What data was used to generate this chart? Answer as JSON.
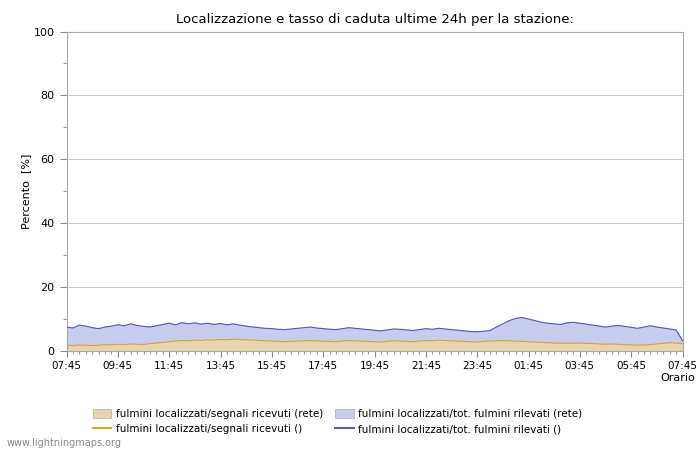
{
  "title": "Localizzazione e tasso di caduta ultime 24h per la stazione:",
  "xlabel": "Orario",
  "ylabel": "Percento  [%]",
  "ylim": [
    0,
    100
  ],
  "yticks": [
    0,
    20,
    40,
    60,
    80,
    100
  ],
  "yminor_ticks": [
    10,
    30,
    50,
    70,
    90
  ],
  "xtick_labels": [
    "07:45",
    "09:45",
    "11:45",
    "13:45",
    "15:45",
    "17:45",
    "19:45",
    "21:45",
    "23:45",
    "01:45",
    "03:45",
    "05:45",
    "07:45"
  ],
  "background_color": "#ffffff",
  "plot_bg_color": "#ffffff",
  "grid_color": "#cccccc",
  "watermark": "www.lightningmaps.org",
  "fill_color_1": "#e8d5b0",
  "fill_color_2": "#c8ccee",
  "line_color_1": "#d4a832",
  "line_color_2": "#5555bb",
  "legend_labels": [
    "fulmini localizzati/segnali ricevuti (rete)",
    "fulmini localizzati/segnali ricevuti ()",
    "fulmini localizzati/tot. fulmini rilevati (rete)",
    "fulmini localizzati/tot. fulmini rilevati ()"
  ],
  "n_points": 97,
  "fill1_values": [
    1.8,
    1.7,
    1.9,
    1.8,
    1.7,
    1.8,
    2.0,
    1.9,
    2.1,
    2.0,
    2.2,
    2.1,
    2.0,
    2.3,
    2.5,
    2.7,
    2.9,
    3.1,
    3.3,
    3.2,
    3.4,
    3.3,
    3.5,
    3.4,
    3.6,
    3.5,
    3.7,
    3.6,
    3.5,
    3.4,
    3.3,
    3.2,
    3.1,
    3.0,
    2.9,
    3.0,
    3.1,
    3.2,
    3.3,
    3.2,
    3.1,
    3.0,
    2.9,
    3.1,
    3.3,
    3.2,
    3.1,
    3.0,
    2.9,
    2.8,
    3.0,
    3.2,
    3.1,
    3.0,
    2.9,
    3.1,
    3.3,
    3.2,
    3.4,
    3.3,
    3.2,
    3.1,
    3.0,
    2.9,
    2.8,
    3.0,
    3.1,
    3.2,
    3.3,
    3.2,
    3.1,
    3.0,
    2.9,
    2.8,
    2.7,
    2.6,
    2.5,
    2.4,
    2.5,
    2.4,
    2.5,
    2.4,
    2.3,
    2.2,
    2.1,
    2.2,
    2.1,
    2.0,
    1.9,
    1.8,
    1.9,
    2.0,
    2.2,
    2.4,
    2.6,
    2.5,
    2.3
  ],
  "fill2_values": [
    7.5,
    7.2,
    8.1,
    7.8,
    7.3,
    7.0,
    7.5,
    7.8,
    8.2,
    7.9,
    8.5,
    8.0,
    7.7,
    7.5,
    7.9,
    8.3,
    8.7,
    8.2,
    8.9,
    8.5,
    8.8,
    8.4,
    8.7,
    8.3,
    8.6,
    8.2,
    8.5,
    8.1,
    7.8,
    7.5,
    7.3,
    7.1,
    7.0,
    6.8,
    6.7,
    6.9,
    7.1,
    7.3,
    7.5,
    7.2,
    7.0,
    6.8,
    6.7,
    7.0,
    7.3,
    7.1,
    6.9,
    6.7,
    6.5,
    6.3,
    6.6,
    6.9,
    6.8,
    6.6,
    6.4,
    6.7,
    7.0,
    6.8,
    7.1,
    6.9,
    6.7,
    6.5,
    6.3,
    6.1,
    6.0,
    6.2,
    6.4,
    7.5,
    8.5,
    9.5,
    10.2,
    10.5,
    10.0,
    9.5,
    9.0,
    8.7,
    8.5,
    8.3,
    8.8,
    9.0,
    8.7,
    8.4,
    8.1,
    7.8,
    7.5,
    7.8,
    8.0,
    7.7,
    7.4,
    7.1,
    7.5,
    7.9,
    7.5,
    7.2,
    6.9,
    6.6,
    3.2
  ]
}
